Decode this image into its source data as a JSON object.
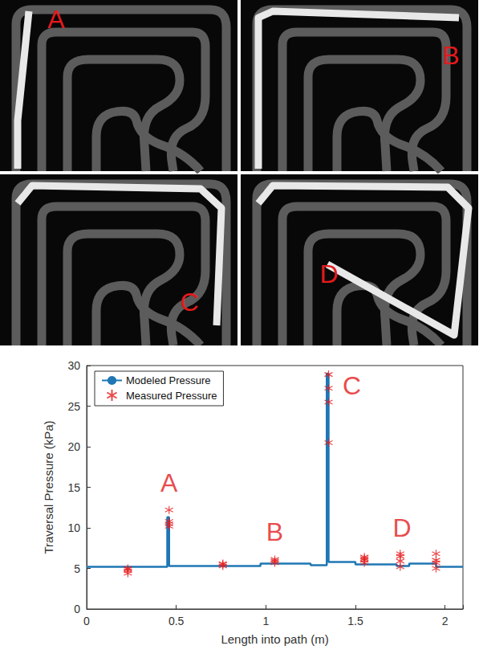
{
  "photos": {
    "panels": [
      {
        "label": "A"
      },
      {
        "label": "B"
      },
      {
        "label": "C"
      },
      {
        "label": "D"
      }
    ]
  },
  "chart_data": {
    "type": "line",
    "x_label": "Length into path (m)",
    "y_label": "Traversal Pressure (kPa)",
    "xlim": [
      0,
      2.1
    ],
    "xticks": [
      0,
      0.5,
      1,
      1.5,
      2
    ],
    "ylim": [
      0,
      30
    ],
    "yticks": [
      0,
      5,
      10,
      15,
      20,
      25,
      30
    ],
    "grid": false,
    "legend": "upper left",
    "series": [
      {
        "name": "Modeled Pressure",
        "type": "line",
        "color": "#1f77b4",
        "line_style": "solid",
        "x": [
          0,
          0.45,
          0.45,
          0.46,
          0.46,
          0.97,
          0.97,
          1.25,
          1.25,
          1.34,
          1.34,
          1.35,
          1.35,
          1.5,
          1.5,
          1.73,
          1.73,
          1.8,
          1.8,
          1.95,
          1.95,
          2.1
        ],
        "values": [
          5.2,
          5.2,
          11.3,
          11.3,
          5.3,
          5.3,
          5.6,
          5.6,
          5.4,
          5.4,
          29,
          29,
          5.8,
          5.8,
          5.5,
          5.5,
          5.3,
          5.3,
          5.6,
          5.6,
          5.2,
          5.2
        ]
      },
      {
        "name": "Measured Pressure",
        "type": "scatter",
        "color": "#e41a1c",
        "marker": "asterisk",
        "x": [
          0.23,
          0.23,
          0.23,
          0.23,
          0.46,
          0.46,
          0.46,
          0.46,
          0.76,
          0.76,
          0.76,
          1.05,
          1.05,
          1.05,
          1.35,
          1.35,
          1.35,
          1.35,
          1.55,
          1.55,
          1.55,
          1.55,
          1.75,
          1.75,
          1.75,
          1.75,
          1.95,
          1.95,
          1.95,
          1.95
        ],
        "values": [
          4.4,
          4.7,
          4.9,
          5.0,
          10.2,
          10.5,
          10.8,
          12.2,
          5.3,
          5.5,
          5.6,
          5.7,
          5.9,
          6.1,
          20.5,
          25.5,
          27.2,
          28.9,
          5.7,
          6.0,
          6.2,
          6.4,
          5.2,
          5.9,
          6.5,
          6.8,
          5.0,
          5.7,
          6.0,
          6.8
        ]
      }
    ],
    "annotations": [
      {
        "text": "A",
        "x": 0.46,
        "y": 15.5,
        "color": "#e41a1c"
      },
      {
        "text": "B",
        "x": 1.05,
        "y": 9.5,
        "color": "#e41a1c"
      },
      {
        "text": "C",
        "x": 1.48,
        "y": 27.5,
        "color": "#e41a1c"
      },
      {
        "text": "D",
        "x": 1.76,
        "y": 10,
        "color": "#e41a1c"
      }
    ]
  }
}
